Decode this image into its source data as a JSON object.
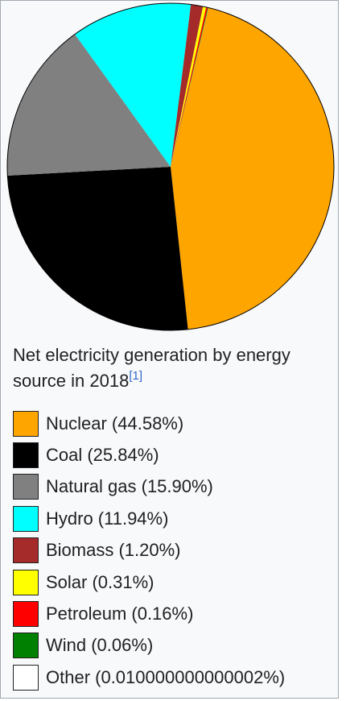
{
  "chart_data": {
    "type": "pie",
    "title": "Net electricity generation by energy source in 2018",
    "title_reference": "[1]",
    "start_angle_deg": 76.6,
    "series": [
      {
        "name": "Nuclear",
        "value": 44.58,
        "label": "Nuclear (44.58%)",
        "color": "#ffa500"
      },
      {
        "name": "Coal",
        "value": 25.84,
        "label": "Coal (25.84%)",
        "color": "#000000"
      },
      {
        "name": "Natural gas",
        "value": 15.9,
        "label": "Natural gas (15.90%)",
        "color": "#808080"
      },
      {
        "name": "Hydro",
        "value": 11.94,
        "label": "Hydro (11.94%)",
        "color": "#00ffff"
      },
      {
        "name": "Biomass",
        "value": 1.2,
        "label": "Biomass (1.20%)",
        "color": "#a52a2a"
      },
      {
        "name": "Solar",
        "value": 0.31,
        "label": "Solar (0.31%)",
        "color": "#ffff00"
      },
      {
        "name": "Petroleum",
        "value": 0.16,
        "label": "Petroleum (0.16%)",
        "color": "#ff0000"
      },
      {
        "name": "Wind",
        "value": 0.06,
        "label": "Wind (0.06%)",
        "color": "#008000"
      },
      {
        "name": "Other",
        "value": 0.01,
        "label": "Other (0.010000000000002%)",
        "color": "#ffffff"
      }
    ]
  }
}
